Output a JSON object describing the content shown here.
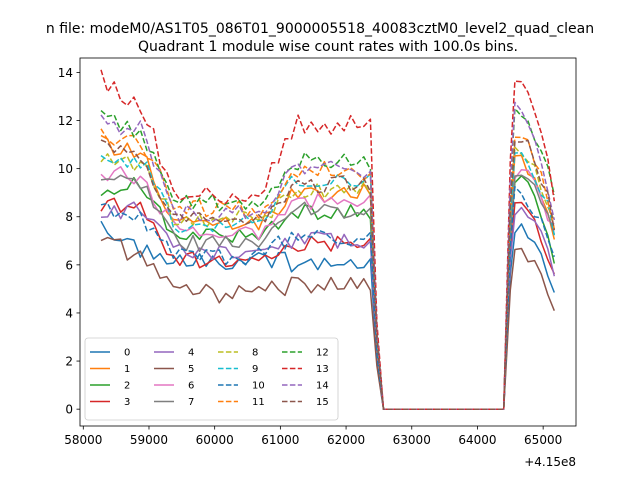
{
  "chart_data": {
    "type": "line",
    "suptitle": "n file: modeM0/AS1T05_086T01_9000005518_40083cztM0_level2_quad_clean",
    "title": "Quadrant 1 module wise count rates with 100.0s bins.",
    "xlabel": "",
    "ylabel": "",
    "x_offset_label": "+4.15e8",
    "xlim": [
      57950,
      65500
    ],
    "ylim": [
      -0.7,
      14.6
    ],
    "x_ticks": [
      58000,
      59000,
      60000,
      61000,
      62000,
      63000,
      64000,
      65000
    ],
    "x_tick_labels": [
      "58000",
      "59000",
      "60000",
      "61000",
      "62000",
      "63000",
      "64000",
      "65000"
    ],
    "y_ticks": [
      0,
      2,
      4,
      6,
      8,
      10,
      12,
      14
    ],
    "y_tick_labels": [
      "0",
      "2",
      "4",
      "6",
      "8",
      "10",
      "12",
      "14"
    ],
    "grid": false,
    "legend_position": "lower-left",
    "legend_columns": 4,
    "x_segments": {
      "seg1": {
        "start": 58270,
        "step": 100,
        "count": 42
      },
      "seg2_drop": [
        62470,
        62570
      ],
      "gap": [
        62570,
        64400
      ],
      "seg3_rise": [
        64400,
        64500
      ],
      "seg3": {
        "start": 64570,
        "step": 100,
        "count": 7
      }
    },
    "series": [
      {
        "name": "0",
        "color": "#1f77b4",
        "style": "solid",
        "start": 7.5,
        "early": 6.6,
        "mid": 6.2,
        "late": 6.1,
        "peak": 7.5,
        "tail": 5.1,
        "jitter": 0.4,
        "drop": 2.0
      },
      {
        "name": "1",
        "color": "#ff7f0e",
        "style": "solid",
        "start": 11.0,
        "early": 10.5,
        "mid": 7.8,
        "late": 9.0,
        "peak": 10.4,
        "tail": 7.0,
        "jitter": 0.4,
        "drop": 2.8
      },
      {
        "name": "2",
        "color": "#2ca02c",
        "style": "solid",
        "start": 9.2,
        "early": 9.4,
        "mid": 7.2,
        "late": 8.2,
        "peak": 9.6,
        "tail": 6.3,
        "jitter": 0.35,
        "drop": 2.5
      },
      {
        "name": "3",
        "color": "#d62728",
        "style": "solid",
        "start": 8.5,
        "early": 8.4,
        "mid": 6.2,
        "late": 6.9,
        "peak": 8.5,
        "tail": 5.6,
        "jitter": 0.35,
        "drop": 2.2
      },
      {
        "name": "4",
        "color": "#9467bd",
        "style": "solid",
        "start": 8.2,
        "early": 8.3,
        "mid": 6.5,
        "late": 7.0,
        "peak": 8.3,
        "tail": 5.8,
        "jitter": 0.35,
        "drop": 2.3
      },
      {
        "name": "5",
        "color": "#8c564b",
        "style": "solid",
        "start": 7.2,
        "early": 6.2,
        "mid": 4.8,
        "late": 5.2,
        "peak": 6.6,
        "tail": 4.1,
        "jitter": 0.4,
        "drop": 1.8
      },
      {
        "name": "6",
        "color": "#e377c2",
        "style": "solid",
        "start": 9.9,
        "early": 9.7,
        "mid": 7.4,
        "late": 8.6,
        "peak": 9.9,
        "tail": 7.4,
        "jitter": 0.4,
        "drop": 2.6
      },
      {
        "name": "7",
        "color": "#7f7f7f",
        "style": "solid",
        "start": 9.6,
        "early": 9.5,
        "mid": 6.9,
        "late": 8.3,
        "peak": 9.7,
        "tail": 7.3,
        "jitter": 0.35,
        "drop": 2.6
      },
      {
        "name": "8",
        "color": "#bcbd22",
        "style": "dashed",
        "start": 10.3,
        "early": 10.2,
        "mid": 7.9,
        "late": 9.1,
        "peak": 10.6,
        "tail": 7.6,
        "jitter": 0.4,
        "drop": 2.8
      },
      {
        "name": "9",
        "color": "#17becf",
        "style": "dashed",
        "start": 10.5,
        "early": 10.3,
        "mid": 7.7,
        "late": 9.4,
        "peak": 10.7,
        "tail": 7.3,
        "jitter": 0.4,
        "drop": 2.8
      },
      {
        "name": "10",
        "color": "#1f77b4",
        "style": "dashed",
        "start": 8.4,
        "early": 8.0,
        "mid": 6.4,
        "late": 7.2,
        "peak": 9.0,
        "tail": 6.1,
        "jitter": 0.4,
        "drop": 2.3
      },
      {
        "name": "11",
        "color": "#ff7f0e",
        "style": "dashed",
        "start": 11.5,
        "early": 11.1,
        "mid": 8.3,
        "late": 9.9,
        "peak": 11.4,
        "tail": 7.6,
        "jitter": 0.4,
        "drop": 3.0
      },
      {
        "name": "12",
        "color": "#2ca02c",
        "style": "dashed",
        "start": 12.2,
        "early": 11.3,
        "mid": 8.6,
        "late": 10.3,
        "peak": 12.3,
        "tail": 8.7,
        "jitter": 0.4,
        "drop": 3.2
      },
      {
        "name": "13",
        "color": "#d62728",
        "style": "dashed",
        "start": 13.8,
        "early": 12.4,
        "mid": 8.9,
        "late": 11.8,
        "peak": 13.8,
        "tail": 8.8,
        "jitter": 0.45,
        "drop": 3.6
      },
      {
        "name": "14",
        "color": "#9467bd",
        "style": "dashed",
        "start": 11.9,
        "early": 11.6,
        "mid": 8.1,
        "late": 9.9,
        "peak": 12.6,
        "tail": 7.7,
        "jitter": 0.4,
        "drop": 3.1
      },
      {
        "name": "15",
        "color": "#8c564b",
        "style": "dashed",
        "start": 10.8,
        "early": 10.3,
        "mid": 7.8,
        "late": 9.3,
        "peak": 11.3,
        "tail": 7.6,
        "jitter": 0.4,
        "drop": 2.9
      }
    ]
  }
}
